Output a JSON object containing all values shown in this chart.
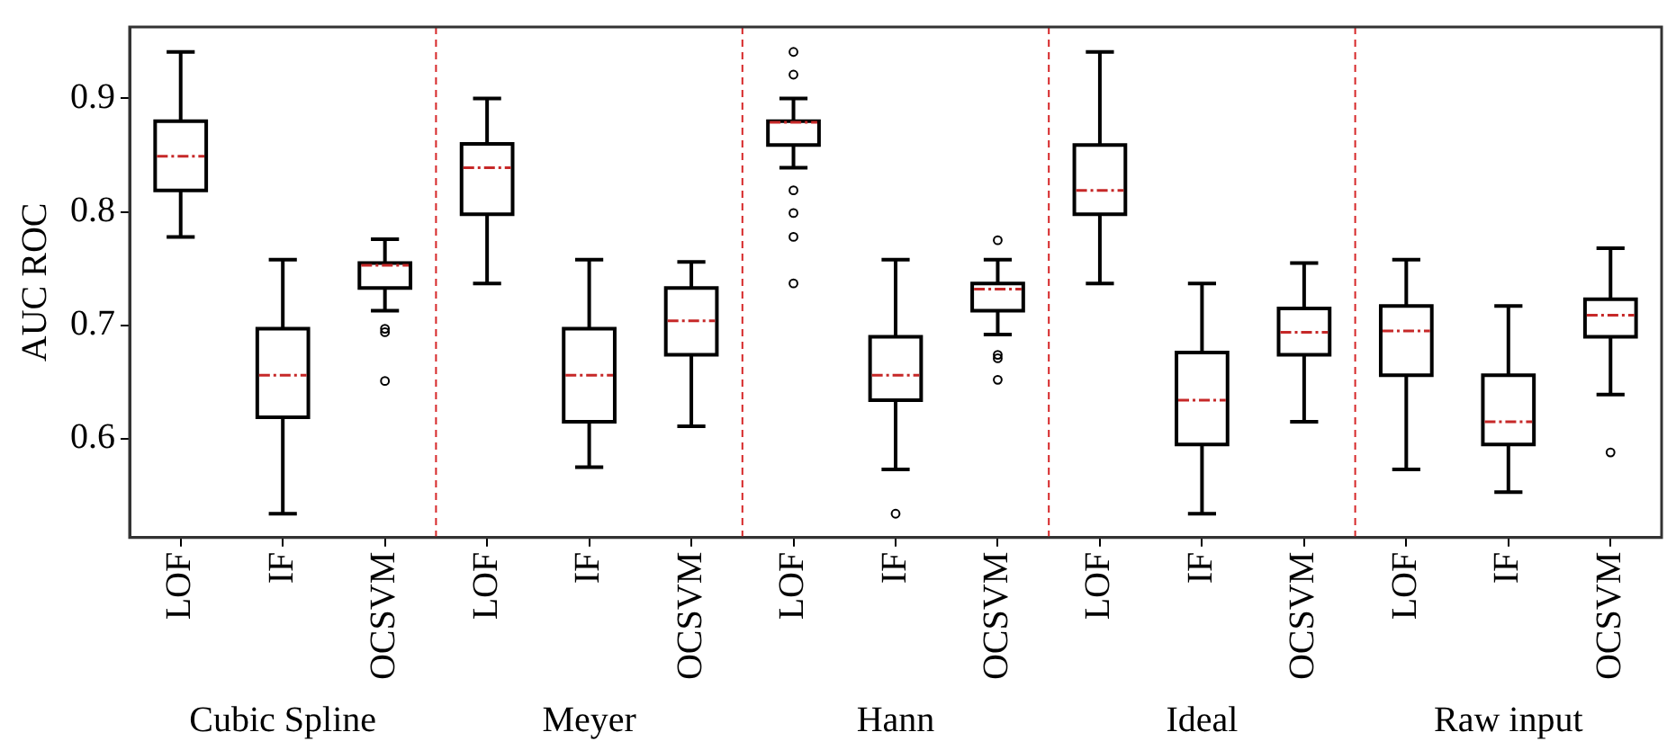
{
  "chart_data": {
    "type": "box",
    "ylabel": "AUC ROC",
    "color": "#000000",
    "categories": [
      "LOF",
      "IF",
      "OCSVM",
      "LOF",
      "IF",
      "OCSVM",
      "LOF",
      "IF",
      "OCSVM",
      "LOF",
      "IF",
      "OCSVM",
      "LOF",
      "IF",
      "OCSVM"
    ],
    "boxes": [
      {
        "low": 0.778,
        "q1": 0.819,
        "median": 0.849,
        "q3": 0.88,
        "high": 0.941
      },
      {
        "low": 0.534,
        "q1": 0.619,
        "median": 0.656,
        "q3": 0.697,
        "high": 0.758
      },
      {
        "low": 0.713,
        "q1": 0.733,
        "median": 0.753,
        "q3": 0.755,
        "high": 0.776,
        "outliers": [
          0.697,
          0.694,
          0.651
        ]
      },
      {
        "low": 0.737,
        "q1": 0.798,
        "median": 0.839,
        "q3": 0.86,
        "high": 0.9
      },
      {
        "low": 0.575,
        "q1": 0.615,
        "median": 0.656,
        "q3": 0.697,
        "high": 0.758
      },
      {
        "low": 0.611,
        "q1": 0.674,
        "median": 0.704,
        "q3": 0.733,
        "high": 0.756
      },
      {
        "low": 0.839,
        "q1": 0.859,
        "median": 0.879,
        "q3": 0.88,
        "high": 0.9,
        "outliers": [
          0.941,
          0.921,
          0.819,
          0.799,
          0.778,
          0.737
        ]
      },
      {
        "low": 0.573,
        "q1": 0.634,
        "median": 0.656,
        "q3": 0.69,
        "high": 0.758,
        "outliers": [
          0.534
        ]
      },
      {
        "low": 0.692,
        "q1": 0.713,
        "median": 0.732,
        "q3": 0.737,
        "high": 0.758,
        "outliers": [
          0.775,
          0.674,
          0.671,
          0.652
        ]
      },
      {
        "low": 0.737,
        "q1": 0.798,
        "median": 0.819,
        "q3": 0.859,
        "high": 0.941
      },
      {
        "low": 0.534,
        "q1": 0.595,
        "median": 0.634,
        "q3": 0.676,
        "high": 0.737
      },
      {
        "low": 0.615,
        "q1": 0.674,
        "median": 0.694,
        "q3": 0.715,
        "high": 0.755
      },
      {
        "low": 0.573,
        "q1": 0.656,
        "median": 0.695,
        "q3": 0.717,
        "high": 0.758
      },
      {
        "low": 0.553,
        "q1": 0.595,
        "median": 0.615,
        "q3": 0.656,
        "high": 0.717
      },
      {
        "low": 0.639,
        "q1": 0.69,
        "median": 0.709,
        "q3": 0.723,
        "high": 0.768,
        "outliers": [
          0.588
        ]
      }
    ],
    "ylim": [
      0.513,
      0.963
    ],
    "yticks": [
      0.6,
      0.7,
      0.8,
      0.9
    ],
    "annotations": [
      "Cubic Spline",
      "Meyer",
      "Hann",
      "Ideal",
      "Raw input"
    ],
    "grid": false,
    "legend": false
  }
}
